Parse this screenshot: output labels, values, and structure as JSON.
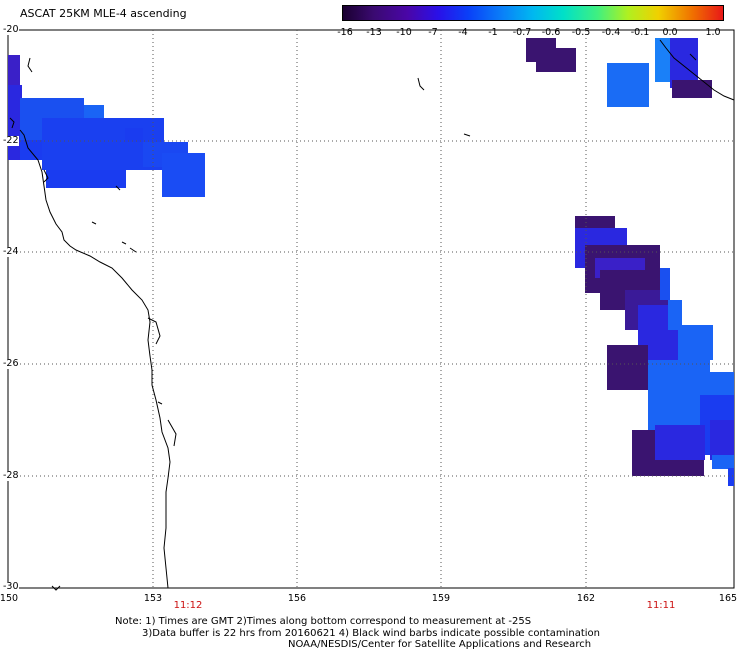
{
  "title": "ASCAT 25KM MLE-4 ascending",
  "colorbar": {
    "ticks": [
      "-16",
      "-13",
      "-10",
      "-7",
      "-4",
      "-1",
      "-0.7",
      "-0.6",
      "-0.5",
      "-0.4",
      "-0.1",
      "0.0",
      "1.0"
    ],
    "colors": [
      "#2a0a40",
      "#3a0a70",
      "#4a06a8",
      "#2a10e8",
      "#0a40f8",
      "#0a80f8",
      "#00b8f0",
      "#00e0c8",
      "#40f080",
      "#b0f020",
      "#f0d000",
      "#f07000",
      "#e81818"
    ]
  },
  "axes": {
    "lon_labels": [
      "150",
      "153",
      "156",
      "159",
      "162",
      "165"
    ],
    "lat_labels": [
      "-20",
      "-22",
      "-24",
      "-26",
      "-28",
      "-30"
    ]
  },
  "time_labels": [
    "11:12",
    "11:11"
  ],
  "notes": [
    "Note: 1) Times are GMT 2)Times along bottom correspond to measurement at -25S",
    "3)Data buffer is 22 hrs from 20160621 4) Black wind barbs indicate possible contamination",
    "NOAA/NESDIS/Center for Satellite Applications and Research"
  ],
  "colors": {
    "dark_purple": "#3a1470",
    "indigo": "#3a20c8",
    "blue": "#1a3cf0",
    "light_blue": "#1a64f5",
    "grid": "#555555",
    "time_red": "#cc1111"
  }
}
